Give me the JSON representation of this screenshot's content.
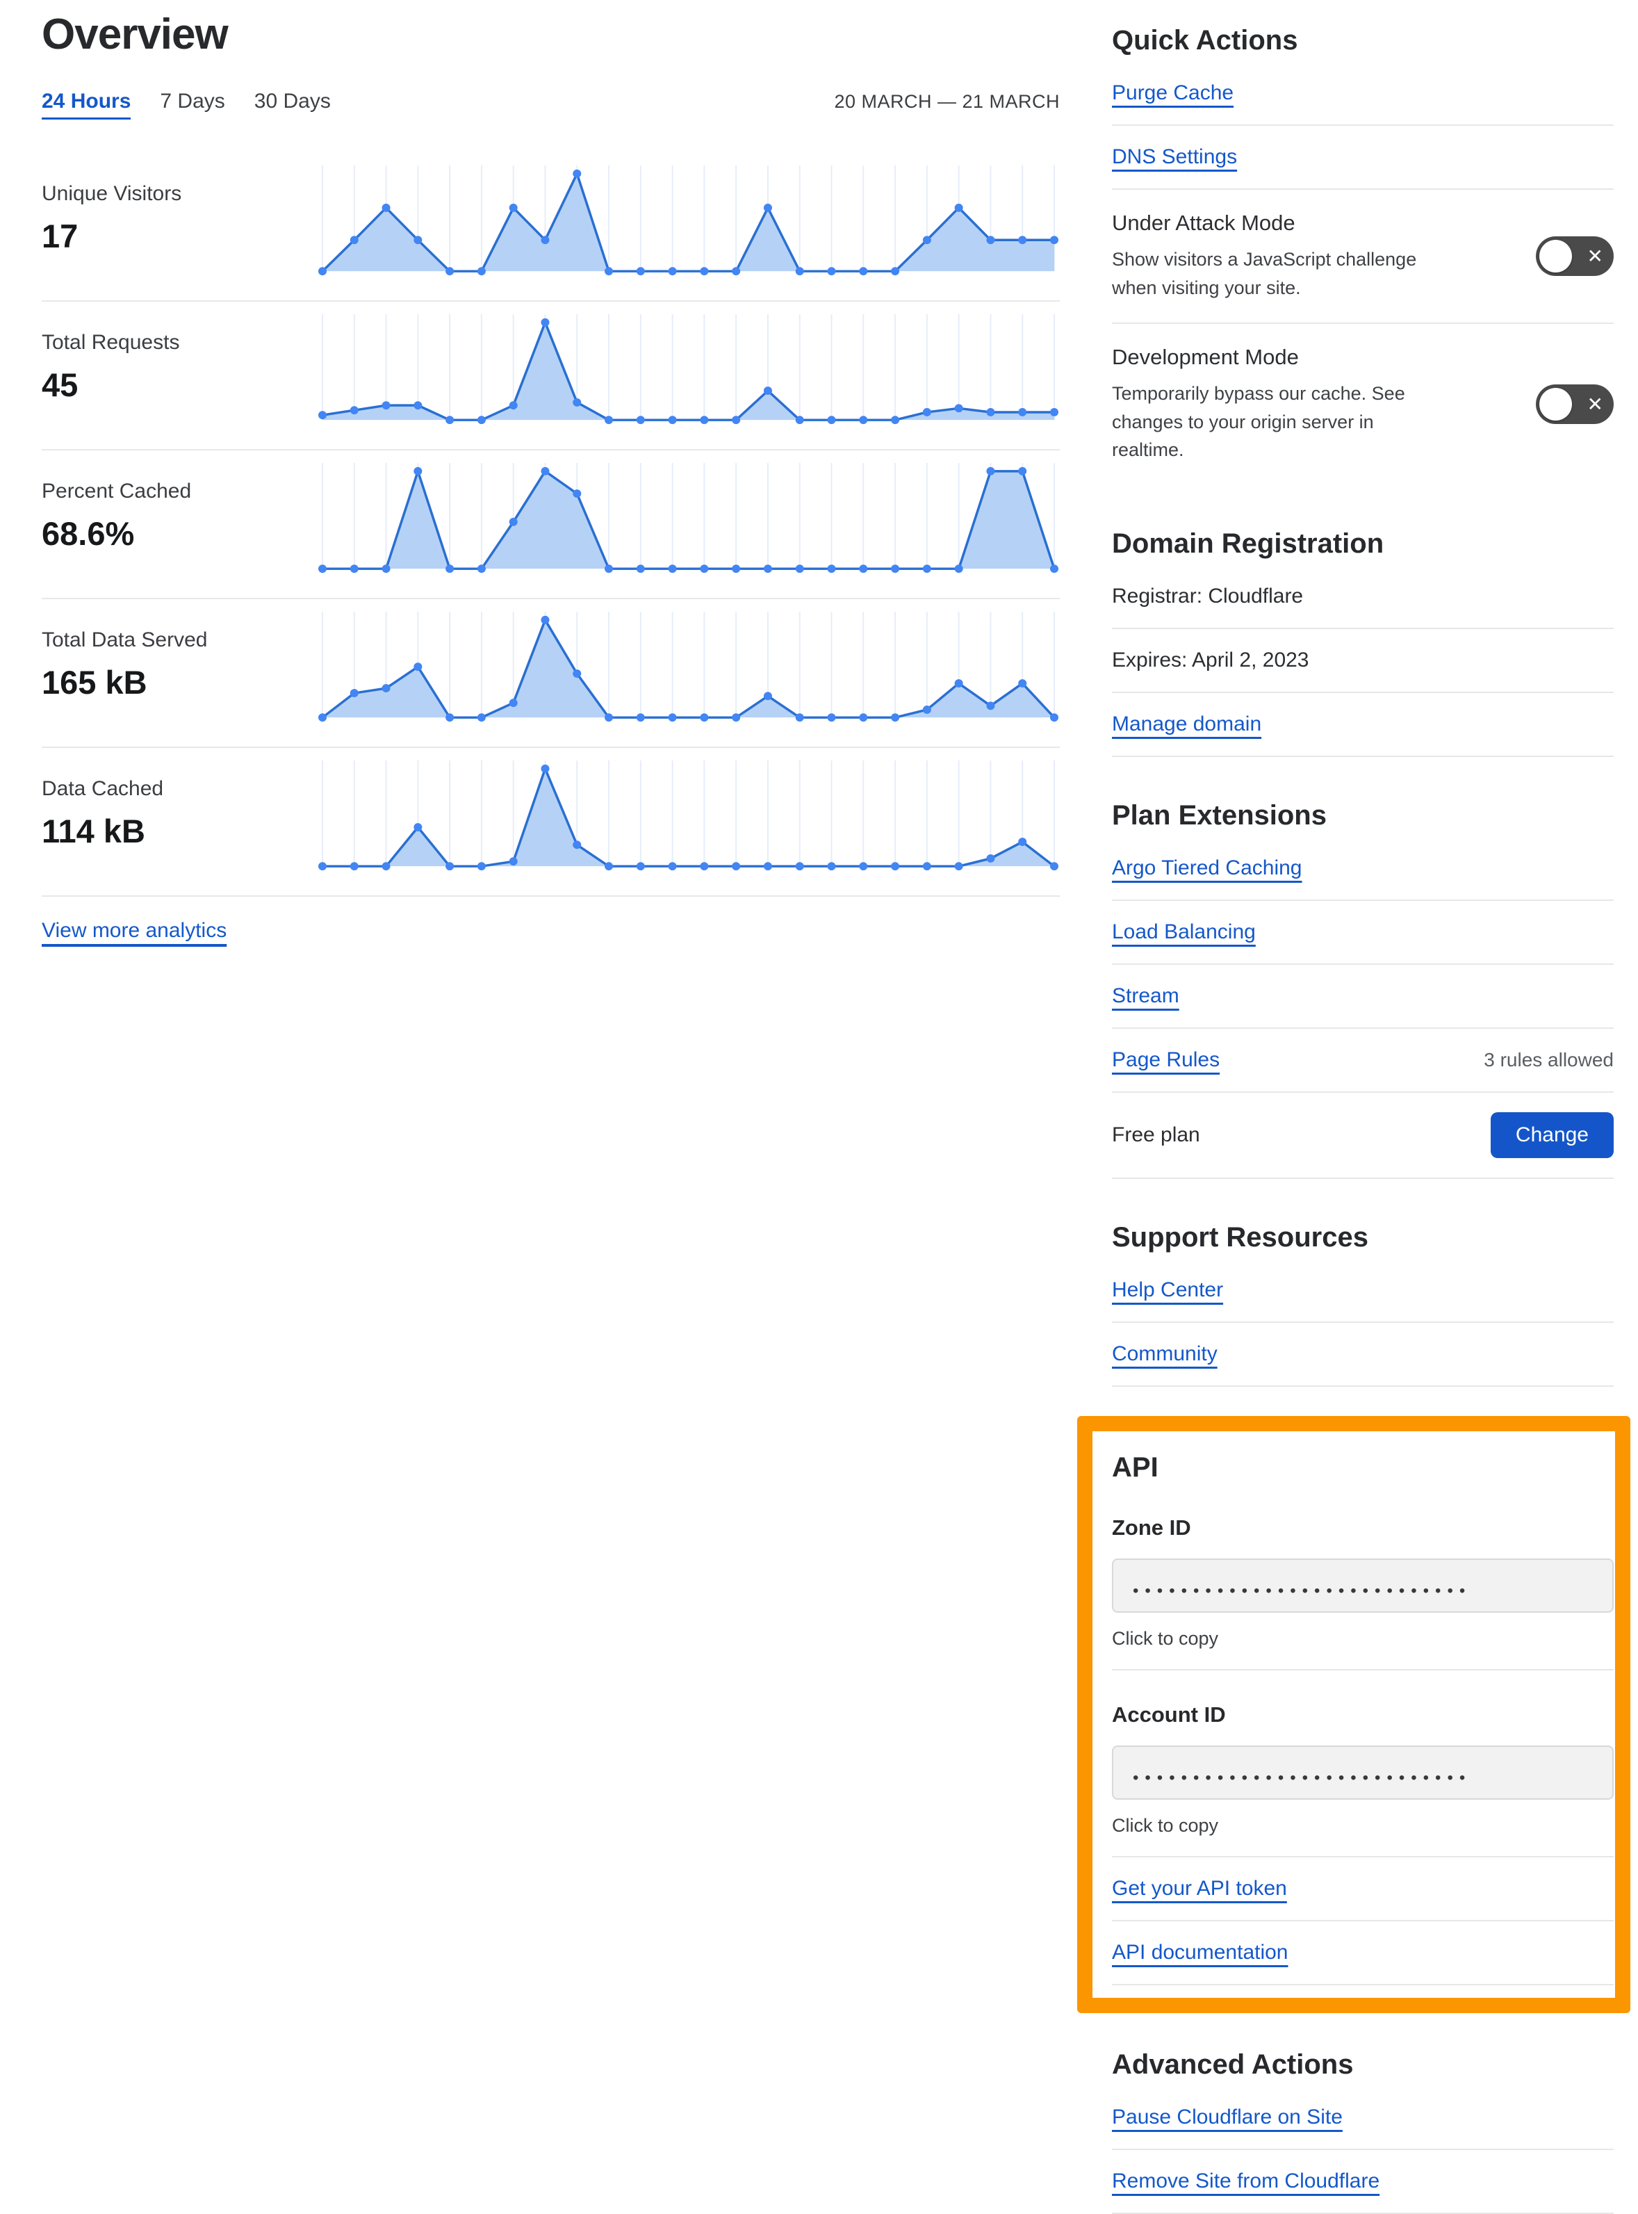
{
  "header": {
    "title": "Overview",
    "tabs": [
      {
        "label": "24 Hours",
        "active": true
      },
      {
        "label": "7 Days",
        "active": false
      },
      {
        "label": "30 Days",
        "active": false
      }
    ],
    "date_range": "20 MARCH — 21 MARCH"
  },
  "metrics": [
    {
      "label": "Unique Visitors",
      "value": "17"
    },
    {
      "label": "Total Requests",
      "value": "45"
    },
    {
      "label": "Percent Cached",
      "value": "68.6%"
    },
    {
      "label": "Total Data Served",
      "value": "165 kB"
    },
    {
      "label": "Data Cached",
      "value": "114 kB"
    }
  ],
  "view_more_label": "View more analytics",
  "chart_data": [
    {
      "type": "area",
      "title": "Unique Visitors",
      "total": "17",
      "x_axis": "24 hourly points, 20 March – 21 March",
      "grid": true,
      "legend_position": "none",
      "ylim": [
        0,
        100
      ],
      "values_pct": [
        0,
        32,
        65,
        32,
        0,
        0,
        65,
        32,
        100,
        0,
        0,
        0,
        0,
        0,
        65,
        0,
        0,
        0,
        0,
        32,
        65,
        32,
        32,
        32
      ]
    },
    {
      "type": "area",
      "title": "Total Requests",
      "total": "45",
      "x_axis": "24 hourly points, 20 March – 21 March",
      "grid": true,
      "legend_position": "none",
      "ylim": [
        0,
        100
      ],
      "values_pct": [
        5,
        10,
        15,
        15,
        0,
        0,
        15,
        100,
        18,
        0,
        0,
        0,
        0,
        0,
        30,
        0,
        0,
        0,
        0,
        8,
        12,
        8,
        8,
        8
      ]
    },
    {
      "type": "area",
      "title": "Percent Cached",
      "total": "68.6%",
      "x_axis": "24 hourly points, 20 March – 21 March",
      "grid": true,
      "legend_position": "none",
      "ylim": [
        0,
        100
      ],
      "values_pct": [
        0,
        0,
        0,
        100,
        0,
        0,
        48,
        100,
        77,
        0,
        0,
        0,
        0,
        0,
        0,
        0,
        0,
        0,
        0,
        0,
        0,
        100,
        100,
        0
      ]
    },
    {
      "type": "area",
      "title": "Total Data Served",
      "total": "165 kB",
      "x_axis": "24 hourly points, 20 March – 21 March",
      "grid": true,
      "legend_position": "none",
      "ylim": [
        0,
        100
      ],
      "values_pct": [
        0,
        25,
        30,
        52,
        0,
        0,
        15,
        100,
        45,
        0,
        0,
        0,
        0,
        0,
        22,
        0,
        0,
        0,
        0,
        8,
        35,
        12,
        35,
        0
      ]
    },
    {
      "type": "area",
      "title": "Data Cached",
      "total": "114 kB",
      "x_axis": "24 hourly points, 20 March – 21 March",
      "grid": true,
      "legend_position": "none",
      "ylim": [
        0,
        100
      ],
      "values_pct": [
        0,
        0,
        0,
        40,
        0,
        0,
        5,
        100,
        22,
        0,
        0,
        0,
        0,
        0,
        0,
        0,
        0,
        0,
        0,
        0,
        0,
        8,
        25,
        0
      ]
    }
  ],
  "quick_actions": {
    "heading": "Quick Actions",
    "links": [
      "Purge Cache",
      "DNS Settings"
    ],
    "toggles": [
      {
        "title": "Under Attack Mode",
        "description": "Show visitors a JavaScript challenge when visiting your site.",
        "state": "off"
      },
      {
        "title": "Development Mode",
        "description": "Temporarily bypass our cache. See changes to your origin server in realtime.",
        "state": "off"
      }
    ]
  },
  "domain_registration": {
    "heading": "Domain Registration",
    "registrar": "Registrar: Cloudflare",
    "expires": "Expires: April 2, 2023",
    "manage_label": "Manage domain"
  },
  "plan_extensions": {
    "heading": "Plan Extensions",
    "links": [
      "Argo Tiered Caching",
      "Load Balancing",
      "Stream"
    ],
    "page_rules": {
      "label": "Page Rules",
      "note": "3 rules allowed"
    },
    "plan": {
      "label": "Free plan",
      "button_label": "Change"
    }
  },
  "support": {
    "heading": "Support Resources",
    "links": [
      "Help Center",
      "Community"
    ]
  },
  "api": {
    "heading": "API",
    "fields": [
      {
        "label": "Zone ID",
        "masked_value": "••••••••••••••••••••••••••••",
        "hint": "Click to copy"
      },
      {
        "label": "Account ID",
        "masked_value": "••••••••••••••••••••••••••••",
        "hint": "Click to copy"
      }
    ],
    "links": [
      "Get your API token",
      "API documentation"
    ]
  },
  "advanced": {
    "heading": "Advanced Actions",
    "links": [
      "Pause Cloudflare on Site",
      "Remove Site from Cloudflare"
    ]
  },
  "icons": {
    "toggle_off_x": "✕"
  },
  "colors": {
    "link_blue": "#1458ca",
    "button_blue": "#1456c9",
    "highlight_orange": "#fb9500",
    "toggle_gray": "#4a4a4a",
    "chart_line": "#2a6fd2",
    "chart_fill": "#b5d2f6",
    "chart_dot": "#4285f4",
    "chart_grid": "#e7edf9"
  }
}
